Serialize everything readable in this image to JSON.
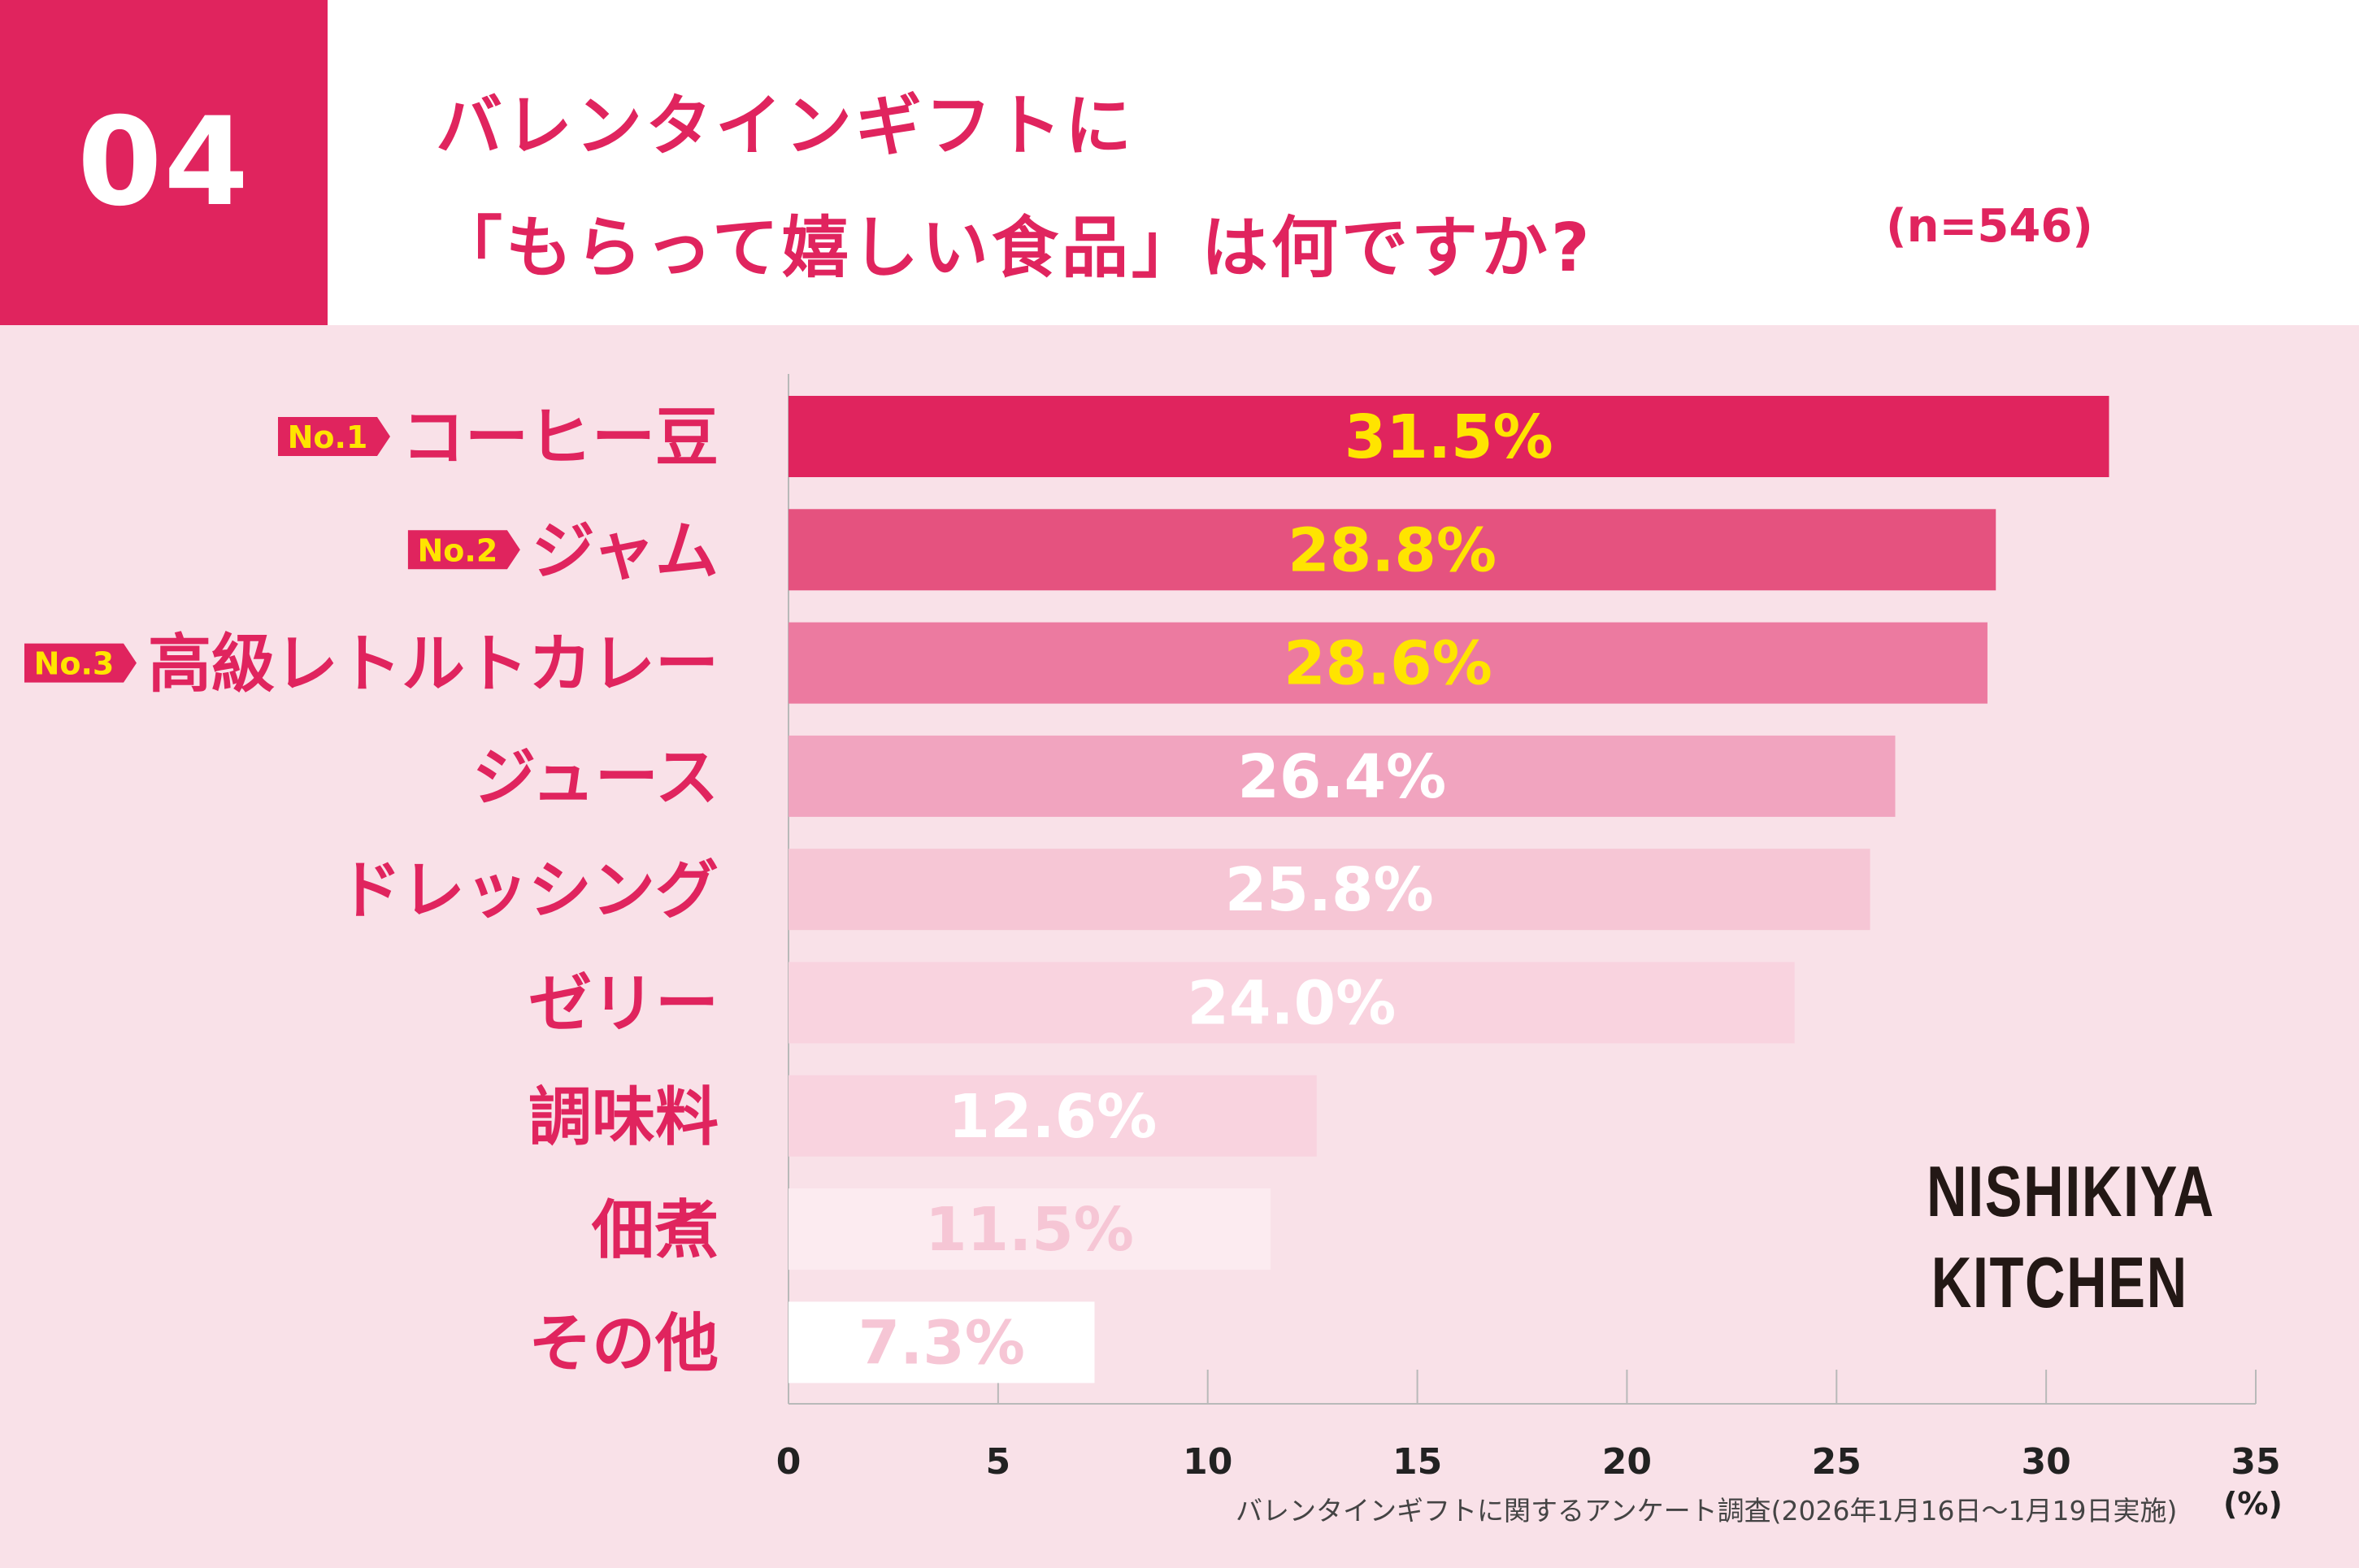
{
  "header": {
    "badge": "04",
    "title_line1": "バレンタインギフトに",
    "title_line2": "「もらって嬉しい食品」は何ですか?",
    "sample_size": "(n=546)"
  },
  "chart_data": {
    "type": "bar",
    "orientation": "horizontal",
    "categories": [
      "コーヒー豆",
      "ジャム",
      "高級レトルトカレー",
      "ジュース",
      "ドレッシング",
      "ゼリー",
      "調味料",
      "佃煮",
      "その他"
    ],
    "values": [
      31.5,
      28.8,
      28.6,
      26.4,
      25.8,
      24.0,
      12.6,
      11.5,
      7.3
    ],
    "value_labels": [
      "31.5%",
      "28.8%",
      "28.6%",
      "26.4%",
      "25.8%",
      "24.0%",
      "12.6%",
      "11.5%",
      "7.3%"
    ],
    "rank_tags": [
      "No.1",
      "No.2",
      "No.3"
    ],
    "bar_colors": [
      "#e0245e",
      "#e5527f",
      "#ec7aa0",
      "#f1a4bf",
      "#f6c6d5",
      "#f9d3df",
      "#f9d3df",
      "#fcebf0",
      "#ffffff"
    ],
    "label_colors": [
      "#ffe400",
      "#ffe400",
      "#ffe400",
      "#ffffff",
      "#ffffff",
      "#ffffff",
      "#ffffff",
      "#f6c6d5",
      "#f6c6d5"
    ],
    "xlim": [
      0,
      35
    ],
    "xticks": [
      0,
      5,
      10,
      15,
      20,
      25,
      30,
      35
    ],
    "xlabel": "(%)",
    "grid": true
  },
  "footer": {
    "source": "バレンタインギフトに関するアンケート調査(2026年1月16日〜1月19日実施)",
    "unit": "(%)"
  },
  "brand": {
    "line1": "NISHIKIYA",
    "line2": "KITCHEN"
  },
  "colors": {
    "accent": "#e0245e",
    "background": "#f9e1e8",
    "rank_tag_text": "#ffe400"
  }
}
